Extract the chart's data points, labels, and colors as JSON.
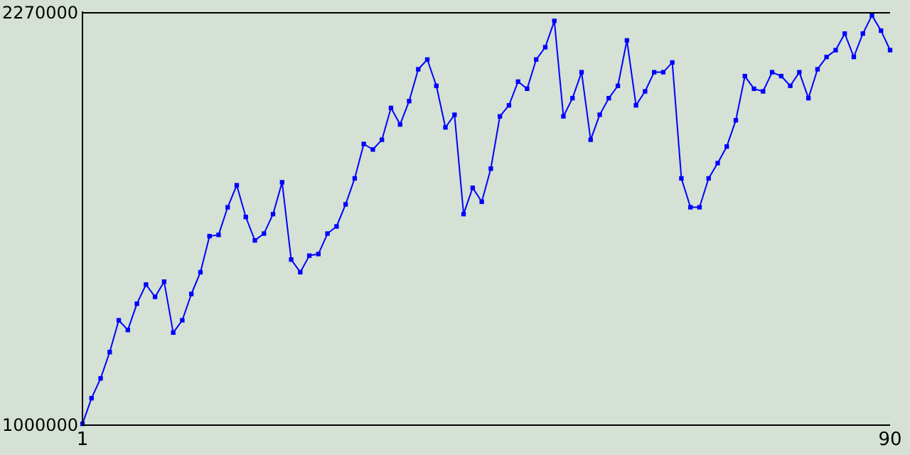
{
  "chart_data": {
    "type": "line",
    "x": [
      1,
      2,
      3,
      4,
      5,
      6,
      7,
      8,
      9,
      10,
      11,
      12,
      13,
      14,
      15,
      16,
      17,
      18,
      19,
      20,
      21,
      22,
      23,
      24,
      25,
      26,
      27,
      28,
      29,
      30,
      31,
      32,
      33,
      34,
      35,
      36,
      37,
      38,
      39,
      40,
      41,
      42,
      43,
      44,
      45,
      46,
      47,
      48,
      49,
      50,
      51,
      52,
      53,
      54,
      55,
      56,
      57,
      58,
      59,
      60,
      61,
      62,
      63,
      64,
      65,
      66,
      67,
      68,
      69,
      70,
      71,
      72,
      73,
      74,
      75,
      76,
      77,
      78,
      79,
      80,
      81,
      82,
      83,
      84,
      85,
      86,
      87,
      88,
      89,
      90
    ],
    "series": [
      {
        "color": "#0000ff",
        "values": [
          1004000,
          1083000,
          1144000,
          1225000,
          1323000,
          1293000,
          1374000,
          1433000,
          1395000,
          1442000,
          1285000,
          1323000,
          1404000,
          1471000,
          1582000,
          1586000,
          1671000,
          1739000,
          1641000,
          1569000,
          1590000,
          1650000,
          1748000,
          1510000,
          1471000,
          1522000,
          1527000,
          1590000,
          1612000,
          1680000,
          1760000,
          1866000,
          1849000,
          1879000,
          1977000,
          1926000,
          1998000,
          2096000,
          2126000,
          2045000,
          1917000,
          1956000,
          1650000,
          1731000,
          1688000,
          1790000,
          1951000,
          1985000,
          2058000,
          2036000,
          2126000,
          2164000,
          2245000,
          1951000,
          2007000,
          2087000,
          1879000,
          1956000,
          2007000,
          2045000,
          2185000,
          1985000,
          2028000,
          2087000,
          2087000,
          2117000,
          1760000,
          1671000,
          1671000,
          1760000,
          1807000,
          1858000,
          1939000,
          2075000,
          2036000,
          2028000,
          2087000,
          2075000,
          2045000,
          2087000,
          2007000,
          2096000,
          2134000,
          2155000,
          2206000,
          2134000,
          2206000,
          2262000,
          2215000,
          2155000
        ]
      }
    ],
    "xlim": [
      1,
      90
    ],
    "xticks": [
      1,
      90
    ],
    "ylim": [
      1000000,
      2270000
    ],
    "yticks": [
      1000000,
      2270000
    ],
    "grid": false,
    "marker": "square",
    "line_style": "solid"
  }
}
